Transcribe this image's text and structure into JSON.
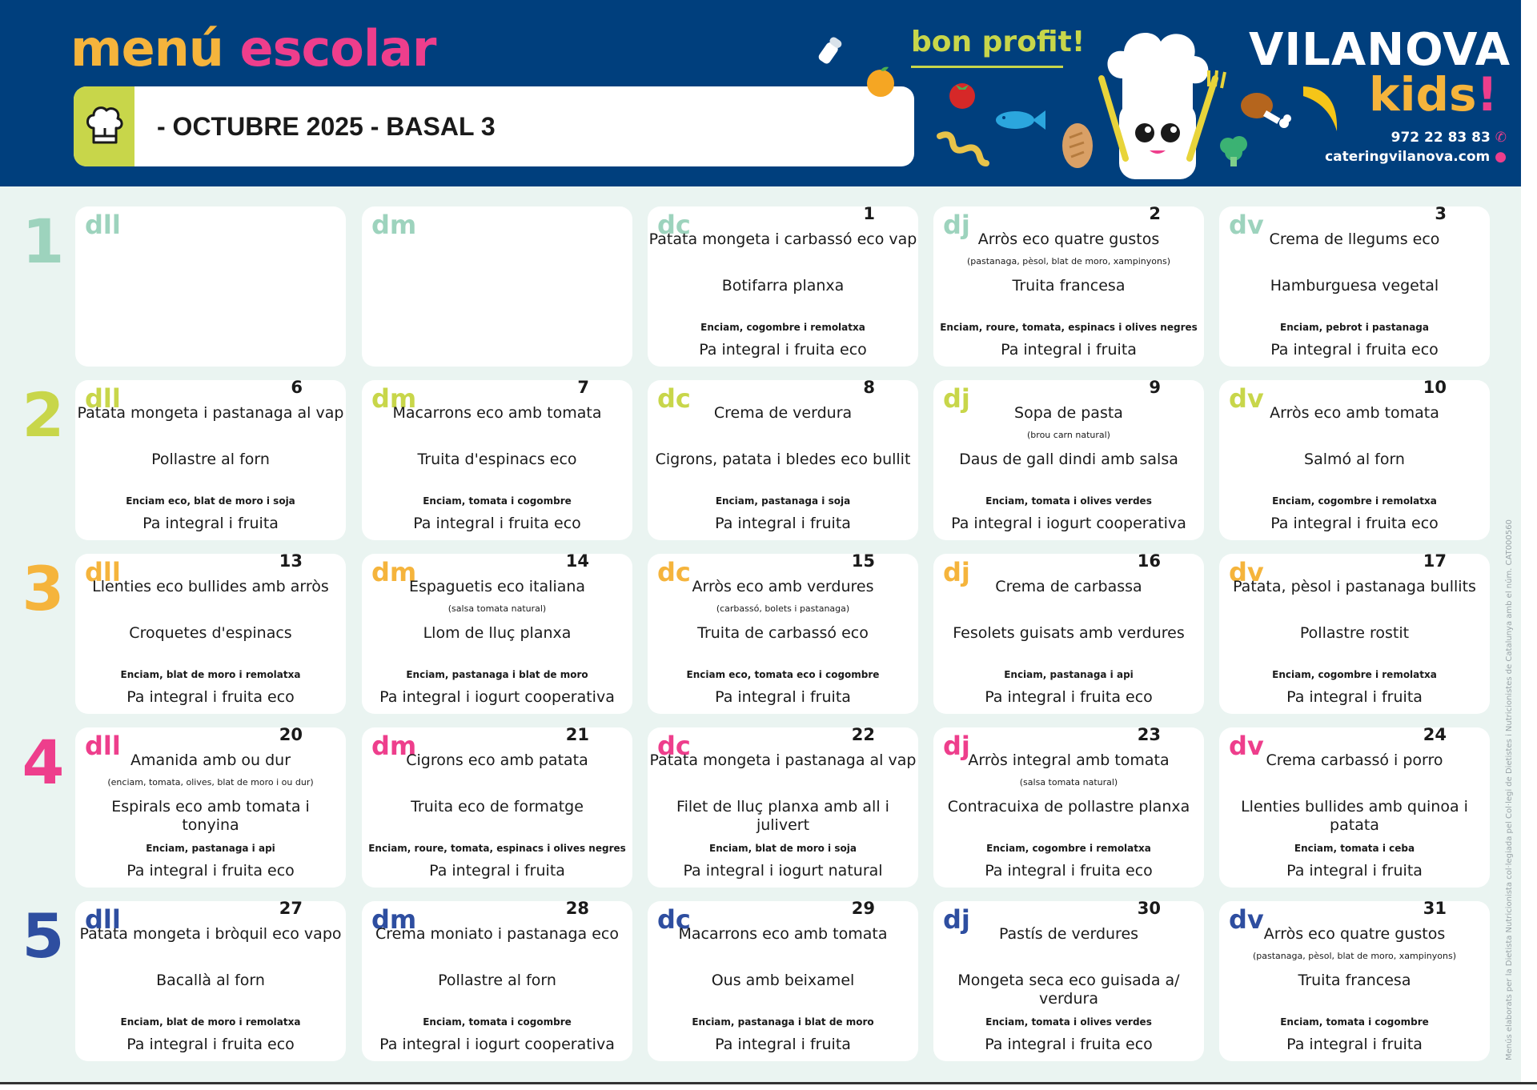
{
  "header": {
    "menu_word1": "menú",
    "menu_word2": "escolar",
    "title": "- OCTUBRE 2025 - BASAL 3",
    "tagline": "bon profit!",
    "brand_line1": "VILANOVA",
    "brand_line2": "kids",
    "brand_exclaim": "!",
    "phone": "972 22 83 83",
    "website": "cateringvilanova.com"
  },
  "colors": {
    "header_bg": "#003f7d",
    "week_colors": [
      "#9dd3bd",
      "#c8d64a",
      "#f5b43c",
      "#ee3e8c",
      "#2e4ea0"
    ]
  },
  "sidebar_note": "Menús elaborats per la Dietista Nutricionista col·legiada pel Col·legi de Dietistes i Nutricionistes de Catalunya amb el núm. CAT000560",
  "weeks": [
    {
      "label": "1",
      "days": [
        {
          "abbr": "dll",
          "num": "",
          "first": "",
          "first_note": "",
          "second": "",
          "salad": "",
          "dessert": ""
        },
        {
          "abbr": "dm",
          "num": "",
          "first": "",
          "first_note": "",
          "second": "",
          "salad": "",
          "dessert": ""
        },
        {
          "abbr": "dc",
          "num": "1",
          "first": "Patata mongeta i carbassó eco vap",
          "first_note": "",
          "second": "Botifarra planxa",
          "salad": "Enciam, cogombre i remolatxa",
          "dessert": "Pa integral i fruita eco"
        },
        {
          "abbr": "dj",
          "num": "2",
          "first": "Arròs eco quatre gustos",
          "first_note": "(pastanaga, pèsol, blat de moro, xampinyons)",
          "second": "Truita francesa",
          "salad": "Enciam, roure, tomata, espinacs i olives negres",
          "dessert": "Pa integral i fruita"
        },
        {
          "abbr": "dv",
          "num": "3",
          "first": "Crema de llegums eco",
          "first_note": "",
          "second": "Hamburguesa vegetal",
          "salad": "Enciam, pebrot i pastanaga",
          "dessert": "Pa integral i fruita eco"
        }
      ]
    },
    {
      "label": "2",
      "days": [
        {
          "abbr": "dll",
          "num": "6",
          "first": "Patata mongeta i pastanaga al vap",
          "first_note": "",
          "second": "Pollastre al forn",
          "salad": "Enciam eco, blat de moro i soja",
          "dessert": "Pa integral i fruita"
        },
        {
          "abbr": "dm",
          "num": "7",
          "first": "Macarrons eco amb tomata",
          "first_note": "",
          "second": "Truita d'espinacs eco",
          "salad": "Enciam, tomata i cogombre",
          "dessert": "Pa integral i fruita eco"
        },
        {
          "abbr": "dc",
          "num": "8",
          "first": "Crema de verdura",
          "first_note": "",
          "second": "Cigrons, patata i bledes eco bullit",
          "salad": "Enciam, pastanaga i soja",
          "dessert": "Pa integral i fruita"
        },
        {
          "abbr": "dj",
          "num": "9",
          "first": "Sopa de pasta",
          "first_note": "(brou carn natural)",
          "second": "Daus de gall dindi amb salsa",
          "salad": "Enciam, tomata i olives verdes",
          "dessert": "Pa integral i iogurt cooperativa"
        },
        {
          "abbr": "dv",
          "num": "10",
          "first": "Arròs eco amb tomata",
          "first_note": "",
          "second": "Salmó al forn",
          "salad": "Enciam, cogombre i remolatxa",
          "dessert": "Pa integral i fruita eco"
        }
      ]
    },
    {
      "label": "3",
      "days": [
        {
          "abbr": "dll",
          "num": "13",
          "first": "Llenties eco bullides amb arròs",
          "first_note": "",
          "second": "Croquetes d'espinacs",
          "salad": "Enciam, blat de moro i remolatxa",
          "dessert": "Pa integral i fruita eco"
        },
        {
          "abbr": "dm",
          "num": "14",
          "first": "Espaguetis eco italiana",
          "first_note": "(salsa tomata natural)",
          "second": "Llom de lluç planxa",
          "salad": "Enciam, pastanaga i blat de moro",
          "dessert": "Pa integral i iogurt cooperativa"
        },
        {
          "abbr": "dc",
          "num": "15",
          "first": "Arròs eco amb verdures",
          "first_note": "(carbassó, bolets i pastanaga)",
          "second": "Truita de carbassó eco",
          "salad": "Enciam eco, tomata eco i cogombre",
          "dessert": "Pa integral i fruita"
        },
        {
          "abbr": "dj",
          "num": "16",
          "first": "Crema de carbassa",
          "first_note": "",
          "second": "Fesolets guisats amb verdures",
          "salad": "Enciam, pastanaga i api",
          "dessert": "Pa integral i fruita eco"
        },
        {
          "abbr": "dv",
          "num": "17",
          "first": "Patata, pèsol i pastanaga bullits",
          "first_note": "",
          "second": "Pollastre rostit",
          "salad": "Enciam, cogombre i remolatxa",
          "dessert": "Pa integral i fruita"
        }
      ]
    },
    {
      "label": "4",
      "days": [
        {
          "abbr": "dll",
          "num": "20",
          "first": "Amanida amb ou dur",
          "first_note": "(enciam, tomata, olives, blat de moro i ou dur)",
          "second": "Espirals eco amb tomata i tonyina",
          "salad": "Enciam, pastanaga i api",
          "dessert": "Pa integral i fruita eco"
        },
        {
          "abbr": "dm",
          "num": "21",
          "first": "Cigrons eco amb patata",
          "first_note": "",
          "second": "Truita eco de formatge",
          "salad": "Enciam, roure, tomata, espinacs i olives negres",
          "dessert": "Pa integral i fruita"
        },
        {
          "abbr": "dc",
          "num": "22",
          "first": "Patata mongeta i pastanaga al vap",
          "first_note": "",
          "second": "Filet de lluç planxa amb all i julivert",
          "salad": "Enciam, blat de moro i soja",
          "dessert": "Pa integral i iogurt natural"
        },
        {
          "abbr": "dj",
          "num": "23",
          "first": "Arròs integral amb tomata",
          "first_note": "(salsa tomata natural)",
          "second": "Contracuixa de pollastre planxa",
          "salad": "Enciam, cogombre i remolatxa",
          "dessert": "Pa integral i fruita eco"
        },
        {
          "abbr": "dv",
          "num": "24",
          "first": "Crema carbassó i porro",
          "first_note": "",
          "second": "Llenties bullides amb quinoa i patata",
          "salad": "Enciam, tomata i ceba",
          "dessert": "Pa integral i fruita"
        }
      ]
    },
    {
      "label": "5",
      "days": [
        {
          "abbr": "dll",
          "num": "27",
          "first": "Patata mongeta i bròquil eco vapo",
          "first_note": "",
          "second": "Bacallà al forn",
          "salad": "Enciam, blat de moro i remolatxa",
          "dessert": "Pa integral i fruita eco"
        },
        {
          "abbr": "dm",
          "num": "28",
          "first": "Crema moniato i pastanaga eco",
          "first_note": "",
          "second": "Pollastre al forn",
          "salad": "Enciam, tomata i cogombre",
          "dessert": "Pa integral i iogurt cooperativa"
        },
        {
          "abbr": "dc",
          "num": "29",
          "first": "Macarrons eco amb tomata",
          "first_note": "",
          "second": "Ous amb beixamel",
          "salad": "Enciam, pastanaga i blat de moro",
          "dessert": "Pa integral i fruita"
        },
        {
          "abbr": "dj",
          "num": "30",
          "first": "Pastís de verdures",
          "first_note": "",
          "second": "Mongeta seca eco guisada a/ verdura",
          "salad": "Enciam, tomata i olives verdes",
          "dessert": "Pa integral i fruita eco"
        },
        {
          "abbr": "dv",
          "num": "31",
          "first": "Arròs eco quatre gustos",
          "first_note": "(pastanaga, pèsol, blat de moro, xampinyons)",
          "second": "Truita francesa",
          "salad": "Enciam, tomata i cogombre",
          "dessert": "Pa integral i fruita"
        }
      ]
    }
  ]
}
